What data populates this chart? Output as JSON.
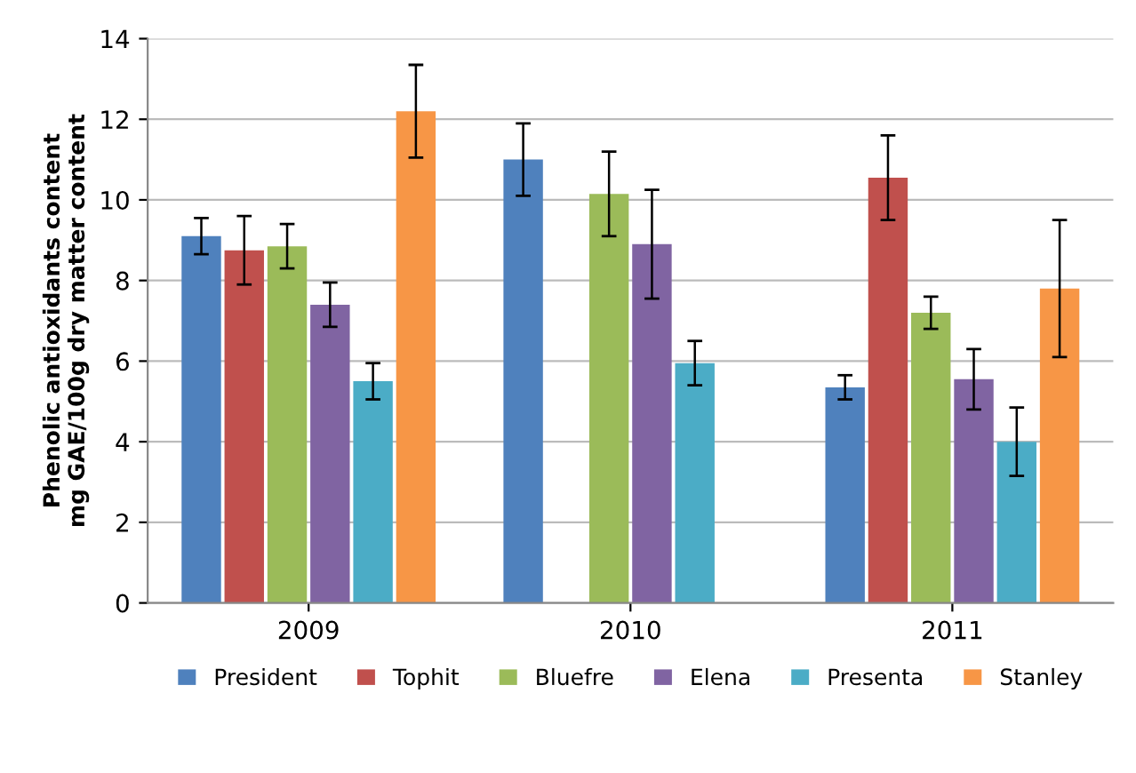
{
  "chart_data": {
    "type": "bar",
    "ylabel": "Phenolic antioxidants content\nmg GAE/100g dry matter content",
    "categories": [
      "2009",
      "2010",
      "2011"
    ],
    "series": [
      {
        "name": "President",
        "color": "#4f81bd",
        "values": [
          9.1,
          11.0,
          5.35
        ],
        "errors": [
          0.45,
          0.9,
          0.3
        ]
      },
      {
        "name": "Tophit",
        "color": "#c0504d",
        "values": [
          8.75,
          null,
          10.55
        ],
        "errors": [
          0.85,
          null,
          1.05
        ]
      },
      {
        "name": "Bluefre",
        "color": "#9bbb59",
        "values": [
          8.85,
          10.15,
          7.2
        ],
        "errors": [
          0.55,
          1.05,
          0.4
        ]
      },
      {
        "name": "Elena",
        "color": "#8064a2",
        "values": [
          7.4,
          8.9,
          5.55
        ],
        "errors": [
          0.55,
          1.35,
          0.75
        ]
      },
      {
        "name": "Presenta",
        "color": "#4bacc6",
        "values": [
          5.5,
          5.95,
          4.0
        ],
        "errors": [
          0.45,
          0.55,
          0.85
        ]
      },
      {
        "name": "Stanley",
        "color": "#f79646",
        "values": [
          12.2,
          null,
          7.8
        ],
        "errors": [
          1.15,
          null,
          1.7
        ]
      }
    ],
    "ylim": [
      0,
      14
    ],
    "yticks": [
      0,
      2,
      4,
      6,
      8,
      10,
      12,
      14
    ],
    "grid": "y",
    "legend": "bottom"
  }
}
